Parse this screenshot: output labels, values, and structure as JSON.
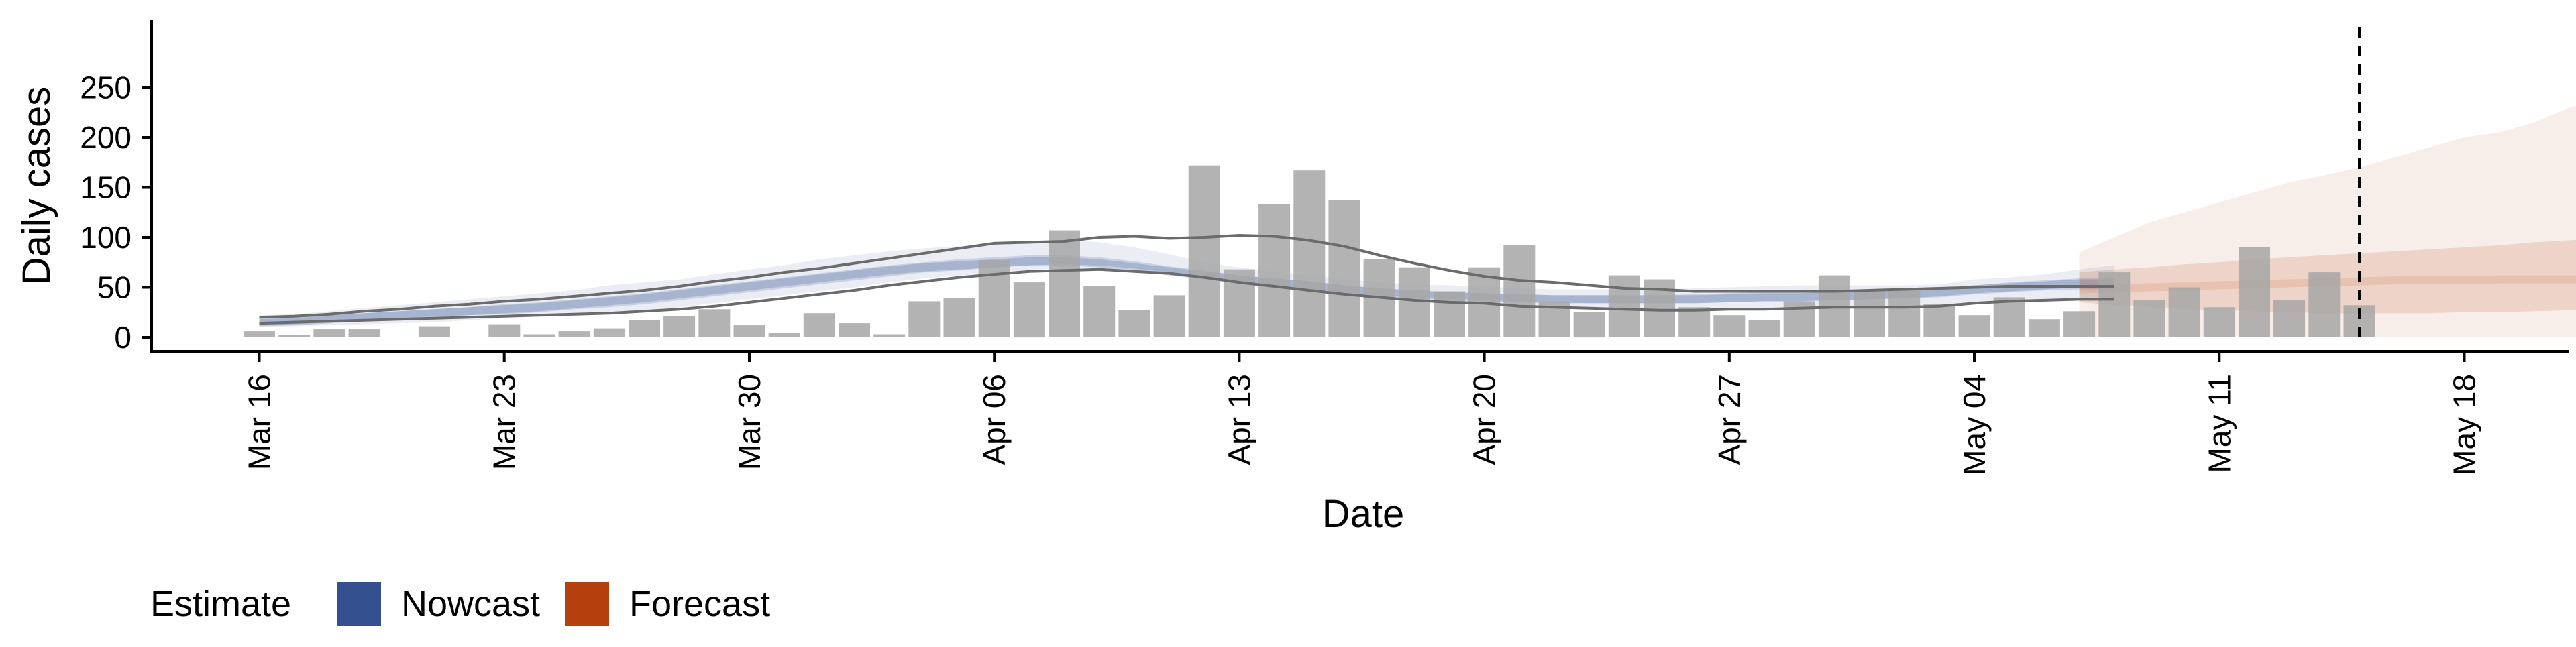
{
  "chart_data": {
    "type": "bar",
    "title": "",
    "xlabel": "Date",
    "ylabel": "Daily cases",
    "ylim": [
      0,
      250
    ],
    "yticks": [
      0,
      50,
      100,
      150,
      200,
      250
    ],
    "x_range": [
      "2020-03-13",
      "2020-05-21"
    ],
    "xticks": [
      {
        "date": "2020-03-16",
        "label": "Mar 16"
      },
      {
        "date": "2020-03-23",
        "label": "Mar 23"
      },
      {
        "date": "2020-03-30",
        "label": "Mar 30"
      },
      {
        "date": "2020-04-06",
        "label": "Apr 06"
      },
      {
        "date": "2020-04-13",
        "label": "Apr 13"
      },
      {
        "date": "2020-04-20",
        "label": "Apr 20"
      },
      {
        "date": "2020-04-27",
        "label": "Apr 27"
      },
      {
        "date": "2020-05-04",
        "label": "May 04"
      },
      {
        "date": "2020-05-11",
        "label": "May 11"
      },
      {
        "date": "2020-05-18",
        "label": "May 18"
      }
    ],
    "vline_date": "2020-05-15",
    "grid": false,
    "legend": {
      "title": "Estimate",
      "position": "bottom-left",
      "entries": [
        {
          "name": "Nowcast",
          "color": "#34508F"
        },
        {
          "name": "Forecast",
          "color": "#B5400E"
        }
      ]
    },
    "bars": {
      "start_date": "2020-03-16",
      "color": "#A6A6A6",
      "values": [
        6,
        2,
        8,
        8,
        0,
        11,
        0,
        13,
        3,
        6,
        9,
        17,
        21,
        28,
        12,
        4,
        24,
        14,
        3,
        36,
        39,
        77,
        55,
        107,
        51,
        27,
        42,
        172,
        68,
        133,
        167,
        137,
        78,
        70,
        46,
        70,
        92,
        35,
        25,
        62,
        58,
        30,
        22,
        17,
        36,
        62,
        45,
        48,
        33,
        22,
        40,
        18,
        26,
        65,
        37,
        50,
        30,
        90,
        37,
        65,
        32
      ]
    },
    "nowcast": {
      "start_date": "2020-03-16",
      "median": [
        15,
        16,
        18,
        20,
        22,
        24,
        26,
        28,
        30,
        33,
        36,
        39,
        43,
        47,
        51,
        55,
        59,
        63,
        67,
        70,
        72,
        74,
        76,
        76,
        74,
        70,
        66,
        62,
        58,
        55,
        52,
        48,
        45,
        43,
        41,
        40,
        39,
        38,
        38,
        38,
        38,
        38,
        39,
        40,
        40,
        41,
        42,
        43,
        45,
        48,
        50,
        52,
        54,
        54
      ],
      "lower90": [
        10,
        11,
        12,
        13,
        14,
        15,
        17,
        19,
        21,
        23,
        24,
        26,
        30,
        34,
        38,
        42,
        46,
        50,
        55,
        59,
        62,
        64,
        67,
        70,
        70,
        68,
        65,
        60,
        55,
        50,
        45,
        42,
        39,
        37,
        35,
        34,
        31,
        30,
        29,
        28,
        27,
        26,
        27,
        28,
        29,
        30,
        30,
        30,
        31,
        34,
        36,
        38,
        39,
        39
      ],
      "upper90": [
        22,
        23,
        26,
        29,
        32,
        35,
        38,
        41,
        44,
        47,
        52,
        55,
        58,
        63,
        68,
        72,
        78,
        82,
        86,
        89,
        91,
        92,
        95,
        98,
        95,
        90,
        83,
        75,
        70,
        66,
        62,
        58,
        55,
        53,
        52,
        51,
        49,
        48,
        48,
        48,
        48,
        49,
        50,
        51,
        52,
        52,
        52,
        52,
        53,
        58,
        60,
        63,
        68,
        72
      ],
      "lower50": [
        12,
        13,
        15,
        17,
        19,
        21,
        22,
        23,
        25,
        28,
        30,
        33,
        37,
        41,
        45,
        49,
        53,
        57,
        61,
        65,
        67,
        70,
        72,
        73,
        72,
        69,
        65,
        60,
        56,
        52,
        48,
        45,
        42,
        40,
        39,
        37,
        36,
        35,
        34,
        34,
        34,
        34,
        35,
        36,
        36,
        37,
        38,
        39,
        40,
        43,
        45,
        47,
        48,
        48
      ],
      "upper50": [
        18,
        19,
        22,
        24,
        26,
        28,
        30,
        33,
        35,
        38,
        41,
        44,
        48,
        52,
        56,
        60,
        64,
        68,
        72,
        75,
        78,
        80,
        82,
        82,
        80,
        76,
        71,
        67,
        62,
        59,
        56,
        52,
        49,
        47,
        45,
        44,
        43,
        42,
        42,
        42,
        42,
        43,
        44,
        45,
        45,
        46,
        46,
        47,
        49,
        52,
        55,
        57,
        59,
        60
      ],
      "outer_lower": [
        14,
        15,
        16,
        17,
        18,
        19,
        20,
        21,
        22,
        23,
        24,
        26,
        28,
        31,
        35,
        39,
        43,
        47,
        52,
        56,
        60,
        63,
        66,
        67,
        68,
        66,
        64,
        60,
        55,
        51,
        47,
        43,
        40,
        37,
        35,
        34,
        31,
        30,
        29,
        28,
        27,
        27,
        28,
        28,
        29,
        30,
        30,
        30,
        31,
        34,
        36,
        37,
        38,
        38
      ],
      "outer_upper": [
        20,
        21,
        23,
        26,
        28,
        31,
        33,
        36,
        38,
        41,
        44,
        47,
        51,
        56,
        60,
        65,
        69,
        74,
        79,
        84,
        89,
        94,
        95,
        96,
        100,
        101,
        99,
        100,
        102,
        101,
        97,
        91,
        82,
        74,
        67,
        61,
        57,
        55,
        52,
        49,
        48,
        46,
        46,
        46,
        46,
        46,
        47,
        48,
        49,
        50,
        51,
        51,
        51,
        51
      ]
    },
    "forecast": {
      "start_date": "2020-05-07",
      "median": [
        48,
        49,
        50,
        51,
        52,
        53,
        54,
        55,
        56,
        57,
        57,
        57,
        58,
        58,
        58,
        58
      ],
      "lower90": [
        0,
        0,
        0,
        0,
        0,
        0,
        0,
        0,
        0,
        0,
        0,
        0,
        0,
        0,
        0,
        0
      ],
      "upper90": [
        85,
        100,
        115,
        125,
        135,
        145,
        155,
        162,
        170,
        180,
        190,
        200,
        205,
        215,
        230,
        240
      ],
      "lower50": [
        35,
        32,
        30,
        28,
        27,
        26,
        25,
        24,
        24,
        24,
        24,
        25,
        25,
        26,
        27,
        28
      ],
      "upper50": [
        65,
        68,
        70,
        73,
        75,
        78,
        80,
        82,
        84,
        86,
        88,
        90,
        92,
        95,
        97,
        100
      ]
    }
  }
}
